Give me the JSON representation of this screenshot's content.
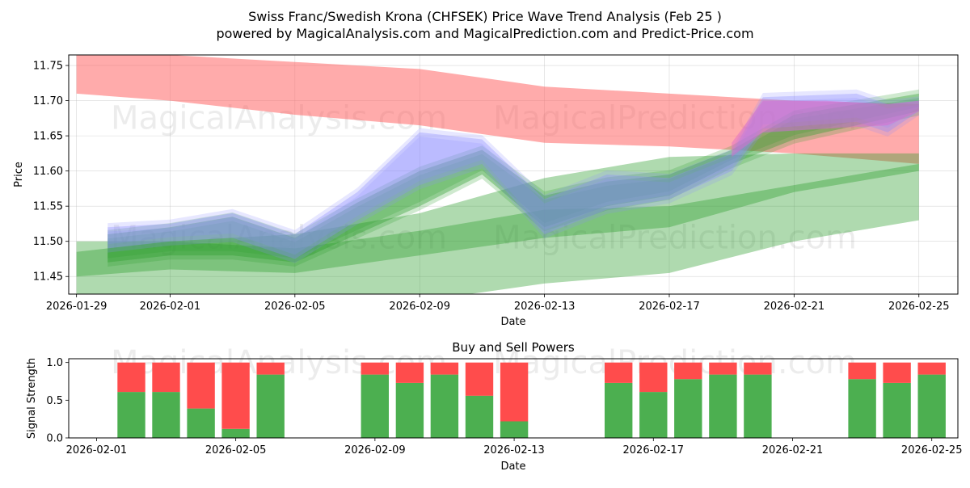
{
  "title_line1": "Swiss Franc/Swedish Krona (CHFSEK) Price Wave Trend Analysis (Feb 25 )",
  "title_line2": "powered by MagicalAnalysis.com and MagicalPrediction.com and Predict-Price.com",
  "watermarks": [
    "MagicalAnalysis.com",
    "MagicalPrediction.com"
  ],
  "colors": {
    "red_band": "#ff6666",
    "green_band": "#2e9e2e",
    "blue_band": "#8c8cff",
    "buy": "#4caf50",
    "sell": "#ff4c4c"
  },
  "chart_data": [
    {
      "type": "area",
      "title": "",
      "xlabel": "Date",
      "ylabel": "Price",
      "xlim": [
        "2026-01-29",
        "2026-02-26"
      ],
      "ylim": [
        11.425,
        11.765
      ],
      "x_ticks": [
        "2026-01-29",
        "2026-02-01",
        "2026-02-05",
        "2026-02-09",
        "2026-02-13",
        "2026-02-17",
        "2026-02-21",
        "2026-02-25"
      ],
      "y_ticks": [
        "11.45",
        "11.50",
        "11.55",
        "11.60",
        "11.65",
        "11.70",
        "11.75"
      ],
      "series": [
        {
          "name": "Long-term red band",
          "color": "red",
          "x": [
            "2026-01-29",
            "2026-02-01",
            "2026-02-05",
            "2026-02-09",
            "2026-02-13",
            "2026-02-17",
            "2026-02-21",
            "2026-02-25"
          ],
          "upper": [
            11.765,
            11.765,
            11.755,
            11.745,
            11.72,
            11.71,
            11.7,
            11.695
          ],
          "lower": [
            11.71,
            11.7,
            11.68,
            11.665,
            11.64,
            11.635,
            11.625,
            11.61
          ]
        },
        {
          "name": "Lower green band",
          "color": "green",
          "x": [
            "2026-01-29",
            "2026-02-01",
            "2026-02-05",
            "2026-02-09",
            "2026-02-13",
            "2026-02-17",
            "2026-02-21",
            "2026-02-25"
          ],
          "upper": [
            11.5,
            11.5,
            11.49,
            11.515,
            11.545,
            11.55,
            11.58,
            11.61
          ],
          "lower": [
            11.39,
            11.41,
            11.42,
            11.415,
            11.44,
            11.455,
            11.5,
            11.53
          ]
        },
        {
          "name": "Middle green band",
          "color": "green",
          "x": [
            "2026-01-29",
            "2026-02-01",
            "2026-02-05",
            "2026-02-09",
            "2026-02-13",
            "2026-02-17",
            "2026-02-21",
            "2026-02-25"
          ],
          "upper": [
            11.485,
            11.5,
            11.51,
            11.54,
            11.59,
            11.62,
            11.625,
            11.625
          ],
          "lower": [
            11.45,
            11.46,
            11.455,
            11.48,
            11.505,
            11.52,
            11.57,
            11.6
          ]
        },
        {
          "name": "Price wave green band",
          "color": "green",
          "x": [
            "2026-01-30",
            "2026-02-01",
            "2026-02-03",
            "2026-02-05",
            "2026-02-07",
            "2026-02-09",
            "2026-02-11",
            "2026-02-13",
            "2026-02-15",
            "2026-02-17",
            "2026-02-19",
            "2026-02-21",
            "2026-02-23",
            "2026-02-25"
          ],
          "upper": [
            11.51,
            11.52,
            11.535,
            11.505,
            11.555,
            11.6,
            11.63,
            11.565,
            11.585,
            11.595,
            11.63,
            11.68,
            11.695,
            11.71
          ],
          "lower": [
            11.47,
            11.48,
            11.48,
            11.47,
            11.51,
            11.55,
            11.595,
            11.52,
            11.55,
            11.565,
            11.61,
            11.645,
            11.665,
            11.685
          ]
        },
        {
          "name": "Price wave blue band",
          "color": "blue",
          "x": [
            "2026-01-30",
            "2026-02-01",
            "2026-02-03",
            "2026-02-05",
            "2026-02-07",
            "2026-02-09",
            "2026-02-11",
            "2026-02-13",
            "2026-02-15",
            "2026-02-17",
            "2026-02-19",
            "2026-02-20",
            "2026-02-23",
            "2026-02-24",
            "2026-02-25"
          ],
          "upper": [
            11.52,
            11.525,
            11.54,
            11.51,
            11.57,
            11.655,
            11.645,
            11.56,
            11.595,
            11.59,
            11.625,
            11.705,
            11.71,
            11.695,
            11.7
          ],
          "lower": [
            11.49,
            11.5,
            11.505,
            11.475,
            11.53,
            11.58,
            11.61,
            11.51,
            11.545,
            11.56,
            11.6,
            11.66,
            11.67,
            11.655,
            11.685
          ]
        },
        {
          "name": "Pink band",
          "color": "pink",
          "x": [
            "2026-02-19",
            "2026-02-20",
            "2026-02-22",
            "2026-02-24",
            "2026-02-25"
          ],
          "upper": [
            11.64,
            11.7,
            11.7,
            11.695,
            11.7
          ],
          "lower": [
            11.62,
            11.655,
            11.66,
            11.665,
            11.685
          ]
        }
      ]
    },
    {
      "type": "bar",
      "title": "Buy and Sell Powers",
      "xlabel": "Date",
      "ylabel": "Signal Strength",
      "ylim": [
        0,
        1.05
      ],
      "y_ticks": [
        "0.0",
        "0.5",
        "1.0"
      ],
      "x_ticks": [
        "2026-02-01",
        "2026-02-05",
        "2026-02-09",
        "2026-02-13",
        "2026-02-17",
        "2026-02-21",
        "2026-02-25"
      ],
      "categories": [
        "2026-02-02",
        "2026-02-03",
        "2026-02-04",
        "2026-02-05",
        "2026-02-06",
        "2026-02-09",
        "2026-02-10",
        "2026-02-11",
        "2026-02-12",
        "2026-02-13",
        "2026-02-16",
        "2026-02-17",
        "2026-02-18",
        "2026-02-19",
        "2026-02-20",
        "2026-02-23",
        "2026-02-24",
        "2026-02-25"
      ],
      "series": [
        {
          "name": "Buy",
          "values": [
            0.61,
            0.61,
            0.39,
            0.12,
            0.84,
            0.84,
            0.73,
            0.84,
            0.56,
            0.22,
            0.73,
            0.61,
            0.78,
            0.84,
            0.84,
            0.78,
            0.73,
            0.84
          ]
        },
        {
          "name": "Sell",
          "values": [
            0.39,
            0.39,
            0.61,
            0.88,
            0.16,
            0.16,
            0.27,
            0.16,
            0.44,
            0.78,
            0.27,
            0.39,
            0.22,
            0.16,
            0.16,
            0.22,
            0.27,
            0.16
          ]
        }
      ]
    }
  ]
}
